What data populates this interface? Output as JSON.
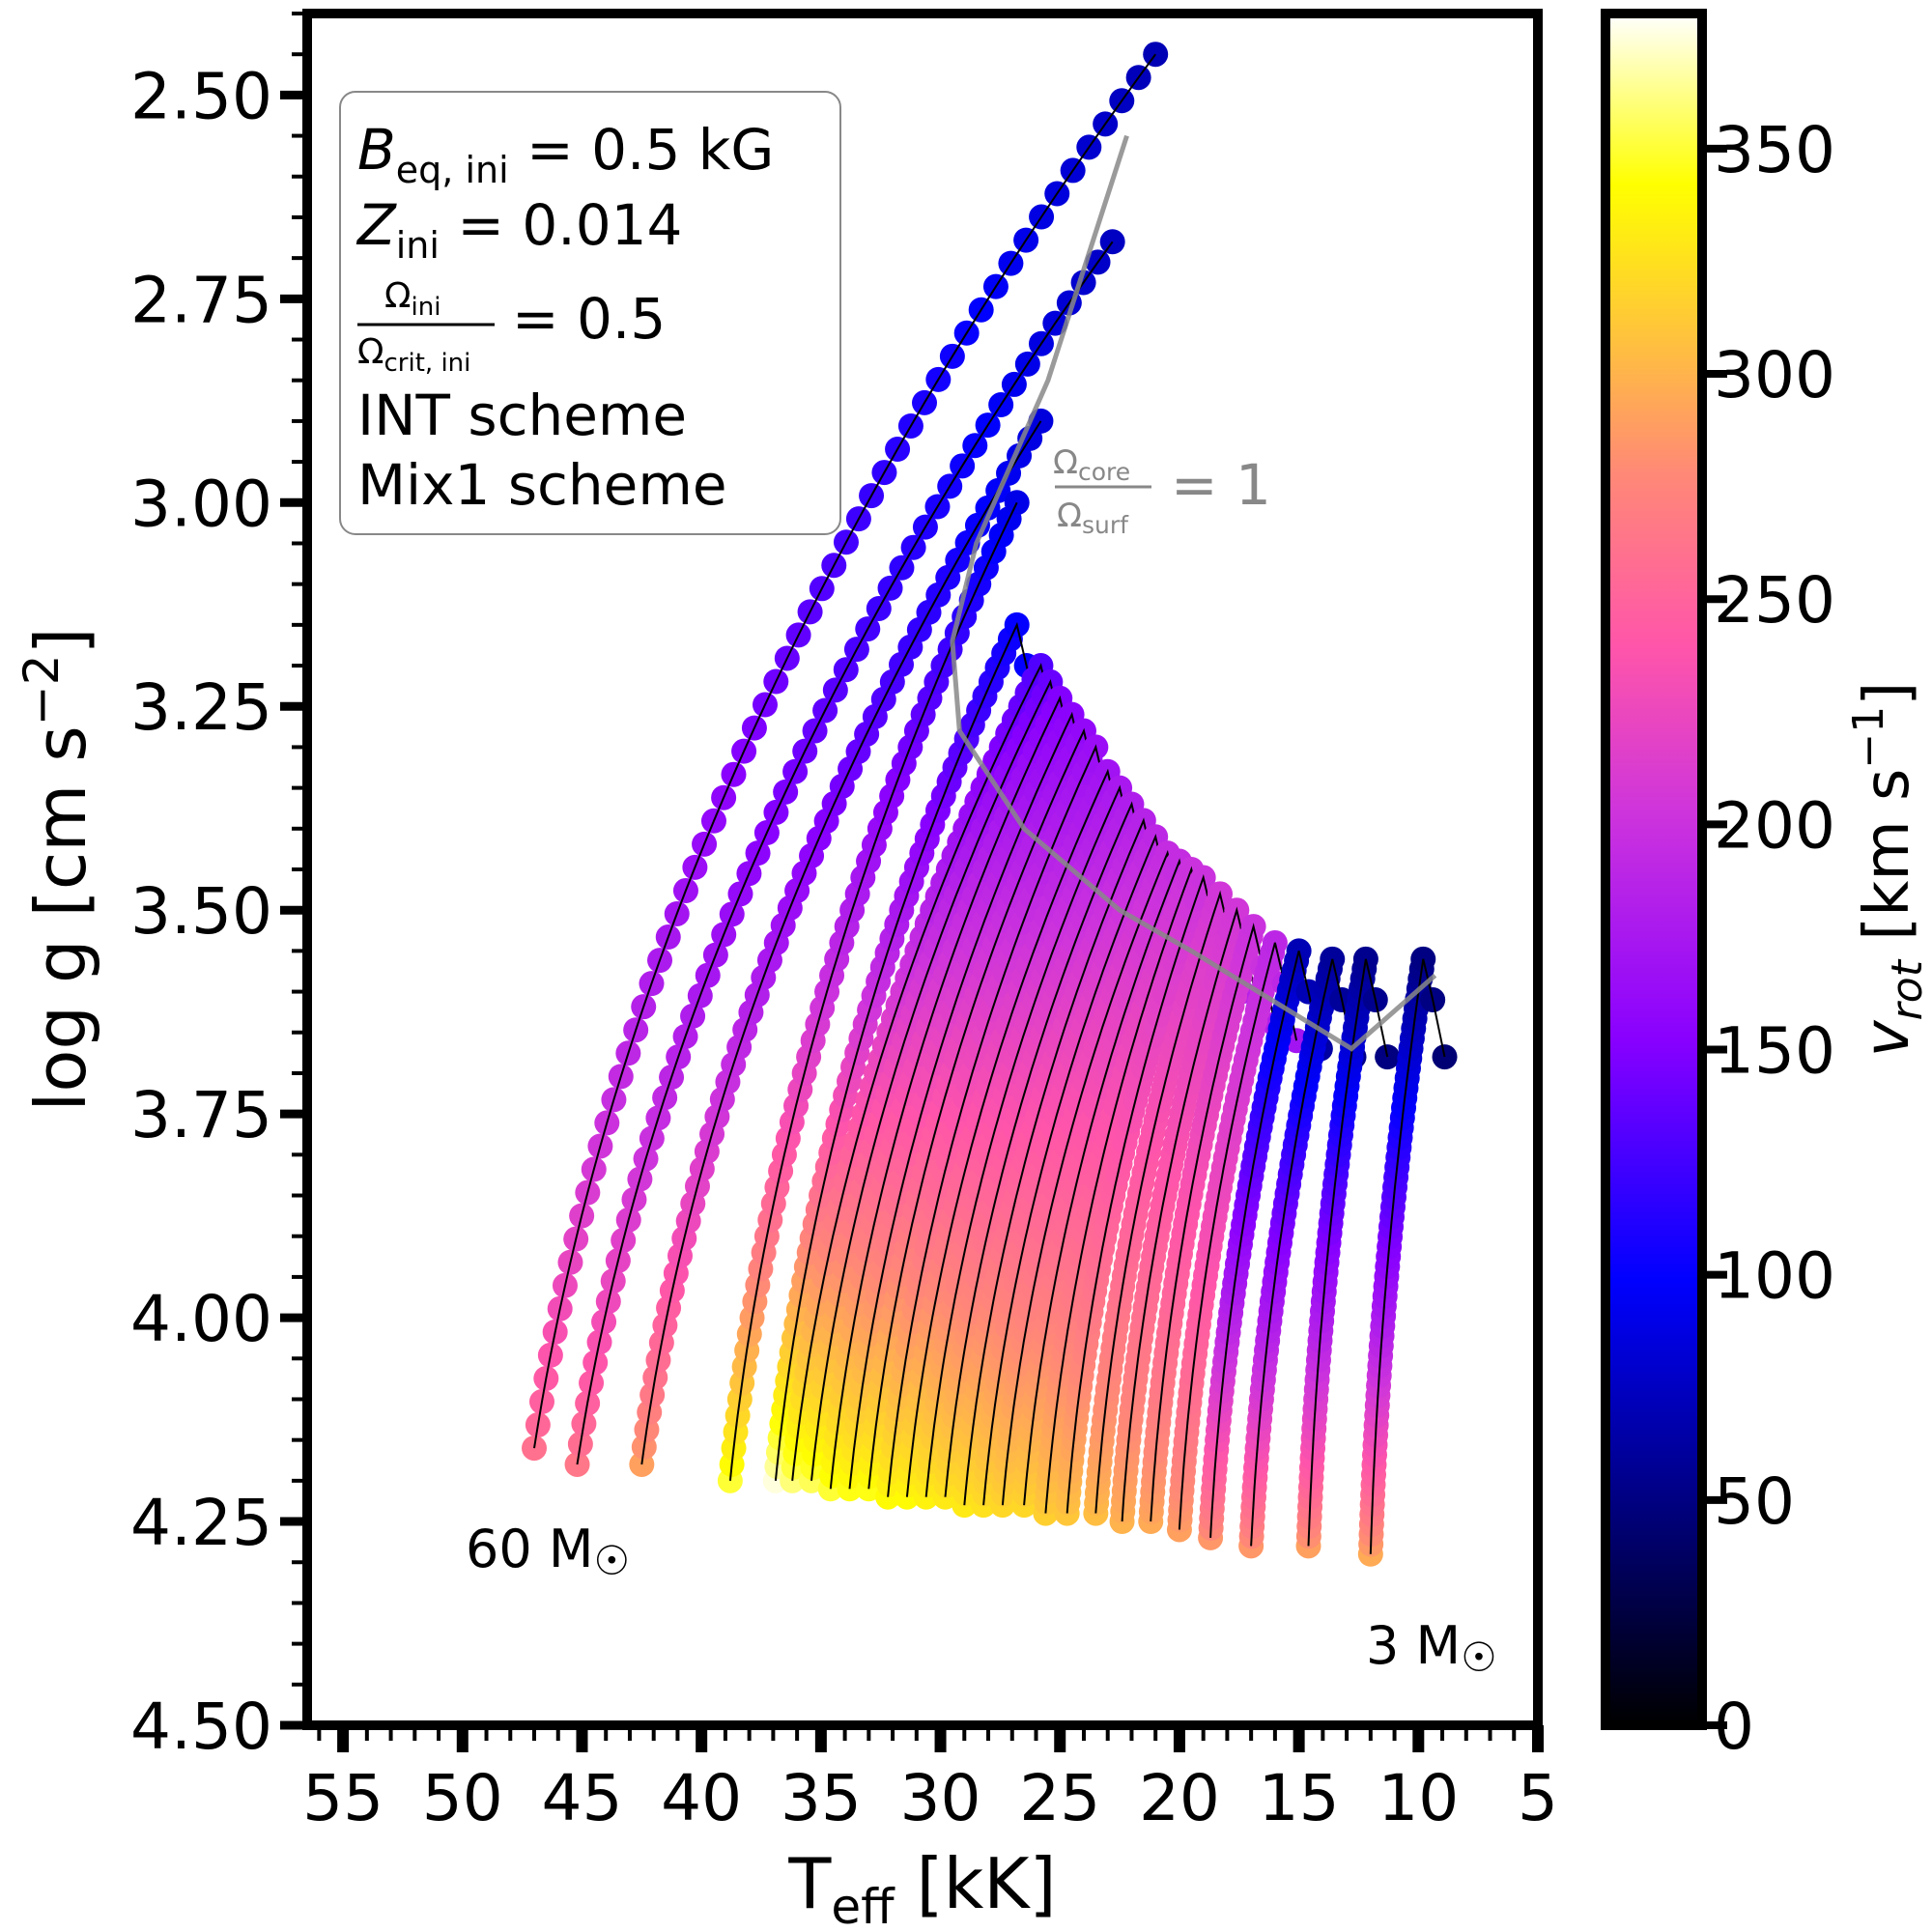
{
  "chart_data": {
    "type": "line",
    "xlabel": "T",
    "xlabel_sub": "eff",
    "xlabel_unit": " [kK]",
    "ylabel": "log g [cm s",
    "ylabel_sup": "−2",
    "ylabel_end": "]",
    "x_inverted": true,
    "y_inverted": true,
    "xlim": [
      56.5,
      5
    ],
    "ylim": [
      2.4,
      4.5
    ],
    "xticks": [
      "55",
      "50",
      "45",
      "40",
      "35",
      "30",
      "25",
      "20",
      "15",
      "10",
      "5"
    ],
    "yticks": [
      "2.50",
      "2.75",
      "3.00",
      "3.25",
      "3.50",
      "3.75",
      "4.00",
      "4.25",
      "4.50"
    ],
    "colorbar": {
      "label": "v",
      "label_sub": "rot",
      "label_unit": " [km s",
      "label_sup": "−1",
      "label_end": "]",
      "min": 0,
      "max": 380,
      "ticks": [
        "0",
        "50",
        "100",
        "150",
        "200",
        "250",
        "300",
        "350"
      ],
      "colormap": "plasma-like: black → blue → purple → pink → orange → yellow → white"
    },
    "info_box": {
      "line1_var": "B",
      "line1_sub": "eq, ini",
      "line1_val": " =  0.5 kG",
      "line2_var": "Z",
      "line2_sub": "ini",
      "line2_val": " =  0.014",
      "frac_num": "Ω",
      "frac_num_sub": "ini",
      "frac_den": "Ω",
      "frac_den_sub": "crit, ini",
      "frac_val": "= 0.5",
      "line4": "INT scheme",
      "line5": "Mix1 scheme"
    },
    "annotations": {
      "top_mass": "60 M",
      "bottom_mass": "3 M",
      "sun": "☉",
      "omega_num": "Ω",
      "omega_num_sub": "core",
      "omega_den": "Ω",
      "omega_den_sub": "surf",
      "omega_val": "= 1"
    },
    "series": [
      {
        "zams_teff": 47.0,
        "zams_logg": 4.16,
        "tams_teff": 21.0,
        "tams_logg": 2.45,
        "v_zams": 260,
        "v_tams": 70,
        "hook": false
      },
      {
        "zams_teff": 45.2,
        "zams_logg": 4.18,
        "tams_teff": 22.8,
        "tams_logg": 2.68,
        "v_zams": 265,
        "v_tams": 75,
        "hook": false
      },
      {
        "zams_teff": 42.5,
        "zams_logg": 4.18,
        "tams_teff": 25.8,
        "tams_logg": 2.9,
        "v_zams": 290,
        "v_tams": 85,
        "hook": false
      },
      {
        "zams_teff": 38.8,
        "zams_logg": 4.2,
        "tams_teff": 26.8,
        "tams_logg": 3.0,
        "v_zams": 350,
        "v_tams": 90,
        "hook": false
      },
      {
        "zams_teff": 36.9,
        "zams_logg": 4.2,
        "tams_teff": 26.8,
        "tams_logg": 3.15,
        "v_zams": 375,
        "v_tams": 100,
        "hook": true
      },
      {
        "zams_teff": 36.2,
        "zams_logg": 4.2,
        "tams_teff": 25.8,
        "tams_logg": 3.2,
        "v_zams": 360,
        "v_tams": 130,
        "hook": true
      },
      {
        "zams_teff": 35.4,
        "zams_logg": 4.2,
        "tams_teff": 25.4,
        "tams_logg": 3.22,
        "v_zams": 355,
        "v_tams": 140,
        "hook": true
      },
      {
        "zams_teff": 34.6,
        "zams_logg": 4.21,
        "tams_teff": 25.0,
        "tams_logg": 3.24,
        "v_zams": 350,
        "v_tams": 150,
        "hook": true
      },
      {
        "zams_teff": 33.8,
        "zams_logg": 4.21,
        "tams_teff": 24.5,
        "tams_logg": 3.26,
        "v_zams": 345,
        "v_tams": 155,
        "hook": true
      },
      {
        "zams_teff": 33.0,
        "zams_logg": 4.21,
        "tams_teff": 24.0,
        "tams_logg": 3.28,
        "v_zams": 345,
        "v_tams": 160,
        "hook": true
      },
      {
        "zams_teff": 32.2,
        "zams_logg": 4.22,
        "tams_teff": 23.5,
        "tams_logg": 3.3,
        "v_zams": 340,
        "v_tams": 165,
        "hook": true
      },
      {
        "zams_teff": 31.4,
        "zams_logg": 4.22,
        "tams_teff": 23.0,
        "tams_logg": 3.33,
        "v_zams": 340,
        "v_tams": 170,
        "hook": true
      },
      {
        "zams_teff": 30.6,
        "zams_logg": 4.22,
        "tams_teff": 22.5,
        "tams_logg": 3.35,
        "v_zams": 335,
        "v_tams": 175,
        "hook": true
      },
      {
        "zams_teff": 29.8,
        "zams_logg": 4.22,
        "tams_teff": 22.0,
        "tams_logg": 3.37,
        "v_zams": 330,
        "v_tams": 180,
        "hook": true
      },
      {
        "zams_teff": 29.0,
        "zams_logg": 4.23,
        "tams_teff": 21.5,
        "tams_logg": 3.39,
        "v_zams": 330,
        "v_tams": 185,
        "hook": true
      },
      {
        "zams_teff": 28.2,
        "zams_logg": 4.23,
        "tams_teff": 21.0,
        "tams_logg": 3.41,
        "v_zams": 325,
        "v_tams": 190,
        "hook": true
      },
      {
        "zams_teff": 27.4,
        "zams_logg": 4.23,
        "tams_teff": 20.5,
        "tams_logg": 3.43,
        "v_zams": 320,
        "v_tams": 195,
        "hook": true
      },
      {
        "zams_teff": 26.5,
        "zams_logg": 4.23,
        "tams_teff": 20.0,
        "tams_logg": 3.44,
        "v_zams": 320,
        "v_tams": 195,
        "hook": true
      },
      {
        "zams_teff": 25.6,
        "zams_logg": 4.24,
        "tams_teff": 19.5,
        "tams_logg": 3.45,
        "v_zams": 315,
        "v_tams": 200,
        "hook": true
      },
      {
        "zams_teff": 24.7,
        "zams_logg": 4.24,
        "tams_teff": 19.0,
        "tams_logg": 3.46,
        "v_zams": 310,
        "v_tams": 200,
        "hook": true
      },
      {
        "zams_teff": 23.5,
        "zams_logg": 4.24,
        "tams_teff": 18.3,
        "tams_logg": 3.48,
        "v_zams": 305,
        "v_tams": 205,
        "hook": true
      },
      {
        "zams_teff": 22.4,
        "zams_logg": 4.25,
        "tams_teff": 17.6,
        "tams_logg": 3.5,
        "v_zams": 300,
        "v_tams": 205,
        "hook": true
      },
      {
        "zams_teff": 21.2,
        "zams_logg": 4.25,
        "tams_teff": 16.9,
        "tams_logg": 3.52,
        "v_zams": 295,
        "v_tams": 200,
        "hook": true
      },
      {
        "zams_teff": 20.0,
        "zams_logg": 4.26,
        "tams_teff": 16.0,
        "tams_logg": 3.54,
        "v_zams": 290,
        "v_tams": 190,
        "hook": true
      },
      {
        "zams_teff": 18.7,
        "zams_logg": 4.27,
        "tams_teff": 15.0,
        "tams_logg": 3.55,
        "v_zams": 285,
        "v_tams": 70,
        "hook": true
      },
      {
        "zams_teff": 17.0,
        "zams_logg": 4.28,
        "tams_teff": 13.6,
        "tams_logg": 3.56,
        "v_zams": 285,
        "v_tams": 60,
        "hook": true
      },
      {
        "zams_teff": 14.6,
        "zams_logg": 4.28,
        "tams_teff": 12.2,
        "tams_logg": 3.56,
        "v_zams": 290,
        "v_tams": 55,
        "hook": true
      },
      {
        "zams_teff": 12.0,
        "zams_logg": 4.29,
        "tams_teff": 9.8,
        "tams_logg": 3.56,
        "v_zams": 295,
        "v_tams": 50,
        "hook": true
      }
    ],
    "omega_ratio_line": {
      "teff": [
        22.2,
        25.5,
        28.5,
        29.5,
        29.2,
        26.5,
        22.5,
        19.5,
        12.8,
        9.3
      ],
      "logg": [
        2.55,
        2.85,
        3.05,
        3.17,
        3.28,
        3.4,
        3.5,
        3.55,
        3.67,
        3.58
      ]
    }
  }
}
